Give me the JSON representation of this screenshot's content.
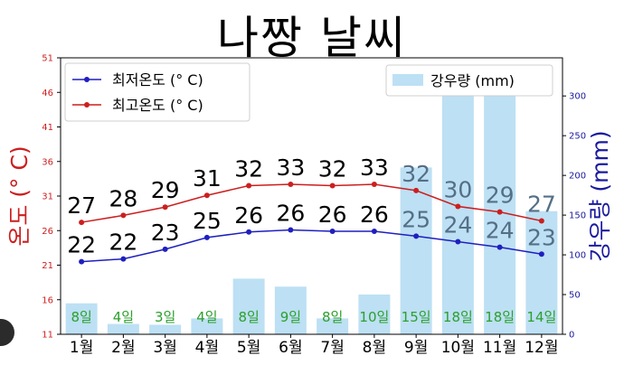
{
  "title": "나짱 날씨",
  "colors": {
    "low_line": "#1f1fbf",
    "high_line": "#cc1f1f",
    "rain_bar": "#bde0f4",
    "rain_text": "#2ca02c",
    "left_axis": "#cc1f1f",
    "right_axis": "#1a1a9e"
  },
  "chart_data": {
    "type": "bar+line",
    "categories": [
      "1월",
      "2월",
      "3월",
      "4월",
      "5월",
      "6월",
      "7월",
      "8월",
      "9월",
      "10월",
      "11월",
      "12월"
    ],
    "series": [
      {
        "name": "최저온도 (° C)",
        "type": "line",
        "axis": "left",
        "values": [
          22,
          22,
          23,
          25,
          26,
          26,
          26,
          26,
          25,
          24,
          24,
          23
        ],
        "y": [
          21.5,
          21.9,
          23.3,
          25.0,
          25.8,
          26.1,
          25.9,
          25.9,
          25.2,
          24.4,
          23.6,
          22.6
        ]
      },
      {
        "name": "최고온도 (° C)",
        "type": "line",
        "axis": "left",
        "values": [
          27,
          28,
          29,
          31,
          32,
          33,
          32,
          33,
          32,
          30,
          29,
          27
        ],
        "y": [
          27.2,
          28.2,
          29.4,
          31.1,
          32.5,
          32.7,
          32.5,
          32.7,
          31.8,
          29.5,
          28.7,
          27.4
        ]
      },
      {
        "name": "강우량 (mm)",
        "type": "bar",
        "axis": "right",
        "values": [
          39,
          13,
          12,
          20,
          70,
          60,
          20,
          50,
          210,
          320,
          320,
          155
        ]
      },
      {
        "name": "rain_days",
        "type": "label",
        "values": [
          "8일",
          "4일",
          "3일",
          "4일",
          "8일",
          "9일",
          "8일",
          "10일",
          "15일",
          "18일",
          "18일",
          "14일"
        ]
      }
    ],
    "y_left": {
      "label": "온도 (° C)",
      "range": [
        11,
        51
      ],
      "ticks": [
        "11",
        "16",
        "21",
        "26",
        "31",
        "36",
        "41",
        "46",
        "51"
      ]
    },
    "y_right": {
      "label": "강우량 (mm)",
      "range": [
        0,
        348
      ],
      "ticks": [
        "0",
        "50",
        "100",
        "150",
        "200",
        "250",
        "300"
      ]
    },
    "legend_left": [
      "최저온도 (° C)",
      "최고온도 (° C)"
    ],
    "legend_right": [
      "강우량 (mm)"
    ],
    "legend_placement": [
      "top-left",
      "top-right"
    ],
    "grid": false
  }
}
